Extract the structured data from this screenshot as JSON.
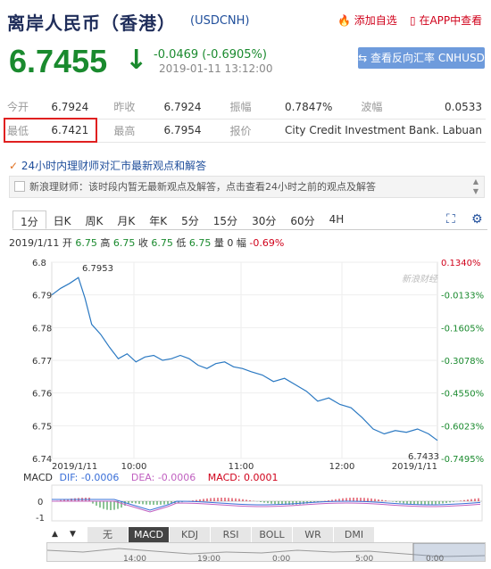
{
  "header": {
    "title": "离岸人民币（香港）",
    "code": "(USDCNH)",
    "add_fav": "添加自选",
    "app_view": "在APP中查看",
    "price": "6.7455",
    "change": "-0.0469 (-0.6905%)",
    "time": "2019-01-11 13:12:00",
    "reverse_button": "查看反向汇率 CNHUSD"
  },
  "quote": {
    "open_label": "今开",
    "open": "6.7924",
    "prev_label": "昨收",
    "prev": "6.7924",
    "amp_label": "振幅",
    "amp": "0.7847%",
    "wave_label": "波幅",
    "wave": "0.0533",
    "low_label": "最低",
    "low": "6.7421",
    "high_label": "最高",
    "high": "6.7954",
    "quote_label": "报价",
    "quote_src": "City Credit Investment Bank. Labuan"
  },
  "news": {
    "headline": "24小时内理财师对汇市最新观点和解答",
    "bar": "新浪理财师：该时段内暂无最新观点及解答，点击查看24小时之前的观点及解答"
  },
  "tabs": [
    "1分",
    "日K",
    "周K",
    "月K",
    "年K",
    "5分",
    "15分",
    "30分",
    "60分",
    "4H"
  ],
  "info": {
    "date": "2019/1/11",
    "open_l": "开",
    "open": "6.75",
    "high_l": "高",
    "high": "6.75",
    "close_l": "收",
    "close": "6.75",
    "low_l": "低",
    "low": "6.75",
    "vol_l": "量",
    "vol": "0",
    "rng_l": "幅",
    "rng": "-0.69%"
  },
  "chart_data": {
    "type": "line",
    "yticks": [
      "6.8",
      "6.79",
      "6.78",
      "6.77",
      "6.76",
      "6.75",
      "6.74"
    ],
    "ylim": [
      6.74,
      6.8
    ],
    "pct_ticks": [
      "0.1340%",
      "-0.0133%",
      "-0.1605%",
      "-0.3078%",
      "-0.4550%",
      "-0.6023%",
      "-0.7495%"
    ],
    "xticks": [
      "2019/1/11",
      "10:00",
      "11:00",
      "12:00",
      "2019/1/11"
    ],
    "high_label": "6.7953",
    "low_label": "6.7433",
    "watermark": "新浪财经",
    "series": [
      {
        "x": 0,
        "y": 6.79
      },
      {
        "x": 4,
        "y": 6.792
      },
      {
        "x": 8,
        "y": 6.7935
      },
      {
        "x": 12,
        "y": 6.7953
      },
      {
        "x": 15,
        "y": 6.789
      },
      {
        "x": 18,
        "y": 6.781
      },
      {
        "x": 22,
        "y": 6.778
      },
      {
        "x": 26,
        "y": 6.774
      },
      {
        "x": 30,
        "y": 6.7705
      },
      {
        "x": 34,
        "y": 6.772
      },
      {
        "x": 38,
        "y": 6.7695
      },
      {
        "x": 42,
        "y": 6.771
      },
      {
        "x": 46,
        "y": 6.7715
      },
      {
        "x": 50,
        "y": 6.77
      },
      {
        "x": 54,
        "y": 6.7705
      },
      {
        "x": 58,
        "y": 6.7715
      },
      {
        "x": 62,
        "y": 6.7705
      },
      {
        "x": 66,
        "y": 6.7685
      },
      {
        "x": 70,
        "y": 6.7675
      },
      {
        "x": 74,
        "y": 6.769
      },
      {
        "x": 78,
        "y": 6.7695
      },
      {
        "x": 82,
        "y": 6.768
      },
      {
        "x": 86,
        "y": 6.7675
      },
      {
        "x": 90,
        "y": 6.7665
      },
      {
        "x": 95,
        "y": 6.7655
      },
      {
        "x": 100,
        "y": 6.7635
      },
      {
        "x": 105,
        "y": 6.7645
      },
      {
        "x": 110,
        "y": 6.7625
      },
      {
        "x": 115,
        "y": 6.7605
      },
      {
        "x": 120,
        "y": 6.7575
      },
      {
        "x": 125,
        "y": 6.7585
      },
      {
        "x": 130,
        "y": 6.7565
      },
      {
        "x": 135,
        "y": 6.7555
      },
      {
        "x": 140,
        "y": 6.7525
      },
      {
        "x": 145,
        "y": 6.749
      },
      {
        "x": 150,
        "y": 6.7475
      },
      {
        "x": 155,
        "y": 6.7485
      },
      {
        "x": 160,
        "y": 6.748
      },
      {
        "x": 165,
        "y": 6.749
      },
      {
        "x": 170,
        "y": 6.7475
      },
      {
        "x": 174,
        "y": 6.7455
      }
    ]
  },
  "macd": {
    "label": "MACD",
    "dif_l": "DIF: ",
    "dif": "-0.0006",
    "dea_l": "DEA: ",
    "dea": "-0.0006",
    "macd_l": "MACD: ",
    "macd": "0.0001",
    "yt1": "0",
    "yt2": "-1"
  },
  "ind_tabs": [
    "无",
    "MACD",
    "KDJ",
    "RSI",
    "BOLL",
    "WR",
    "DMI"
  ],
  "nav_ticks": [
    "14:00",
    "19:00",
    "0:00",
    "5:00",
    "0:00"
  ]
}
